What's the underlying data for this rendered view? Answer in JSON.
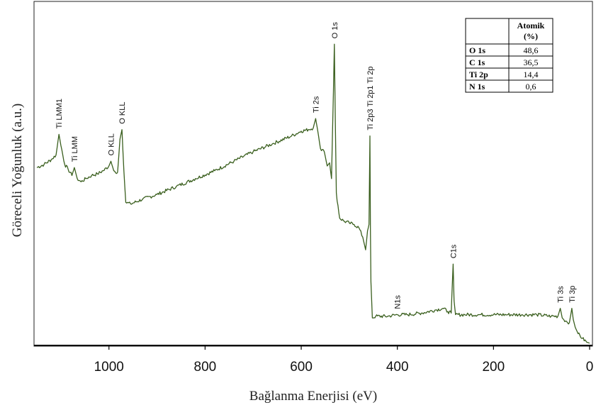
{
  "chart_data": {
    "type": "line",
    "xlabel": "Bağlanma Enerjisi (eV)",
    "ylabel": "Göreceli Yoğunluk (a.u.)",
    "xlim": [
      1150,
      0
    ],
    "x_reversed": true,
    "xticks": [
      {
        "value": 1000,
        "label": "1000"
      },
      {
        "value": 800,
        "label": "800"
      },
      {
        "value": 600,
        "label": "600"
      },
      {
        "value": 400,
        "label": "400"
      },
      {
        "value": 200,
        "label": "200"
      },
      {
        "value": 0,
        "label": "0"
      }
    ],
    "ylim": [
      0,
      100
    ],
    "yticks_shown": false,
    "line_color": "#3a5f1e",
    "series": [
      {
        "points": [
          [
            1150,
            56.0
          ],
          [
            1135,
            57.0
          ],
          [
            1120,
            58.5
          ],
          [
            1110,
            60.0
          ],
          [
            1104,
            66.5
          ],
          [
            1100,
            63.0
          ],
          [
            1092,
            57.0
          ],
          [
            1085,
            55.5
          ],
          [
            1077,
            53.5
          ],
          [
            1072,
            56.0
          ],
          [
            1066,
            52.5
          ],
          [
            1058,
            51.5
          ],
          [
            1048,
            52.5
          ],
          [
            1036,
            53.5
          ],
          [
            1024,
            54.0
          ],
          [
            1012,
            55.0
          ],
          [
            1000,
            56.5
          ],
          [
            996,
            58.0
          ],
          [
            990,
            55.0
          ],
          [
            982,
            54.5
          ],
          [
            977,
            65.0
          ],
          [
            973,
            68.0
          ],
          [
            969,
            55.0
          ],
          [
            965,
            45.0
          ],
          [
            955,
            44.5
          ],
          [
            930,
            46.0
          ],
          [
            900,
            47.5
          ],
          [
            860,
            50.0
          ],
          [
            820,
            52.5
          ],
          [
            780,
            55.0
          ],
          [
            740,
            58.0
          ],
          [
            700,
            61.0
          ],
          [
            660,
            63.5
          ],
          [
            620,
            66.0
          ],
          [
            600,
            67.5
          ],
          [
            585,
            68.0
          ],
          [
            575,
            68.5
          ],
          [
            570,
            71.5
          ],
          [
            566,
            68.0
          ],
          [
            560,
            62.0
          ],
          [
            552,
            61.0
          ],
          [
            546,
            56.5
          ],
          [
            541,
            57.5
          ],
          [
            537,
            52.5
          ],
          [
            533,
            80.0
          ],
          [
            531,
            95.0
          ],
          [
            529,
            70.0
          ],
          [
            527,
            48.0
          ],
          [
            520,
            40.0
          ],
          [
            510,
            39.0
          ],
          [
            500,
            38.5
          ],
          [
            490,
            38.0
          ],
          [
            480,
            37.0
          ],
          [
            472,
            34.0
          ],
          [
            466,
            30.0
          ],
          [
            462,
            36.0
          ],
          [
            459,
            38.0
          ],
          [
            457,
            66.0
          ],
          [
            456,
            36.0
          ],
          [
            455,
            20.0
          ],
          [
            452,
            8.5
          ],
          [
            445,
            9.0
          ],
          [
            420,
            9.0
          ],
          [
            400,
            9.5
          ],
          [
            380,
            9.5
          ],
          [
            350,
            10.0
          ],
          [
            320,
            11.0
          ],
          [
            305,
            11.5
          ],
          [
            295,
            10.5
          ],
          [
            288,
            10.0
          ],
          [
            284,
            25.5
          ],
          [
            282,
            14.0
          ],
          [
            279,
            9.5
          ],
          [
            260,
            9.5
          ],
          [
            230,
            9.5
          ],
          [
            200,
            9.5
          ],
          [
            170,
            9.5
          ],
          [
            140,
            9.5
          ],
          [
            110,
            9.5
          ],
          [
            80,
            9.0
          ],
          [
            66,
            9.0
          ],
          [
            61,
            11.5
          ],
          [
            57,
            8.5
          ],
          [
            50,
            7.5
          ],
          [
            42,
            7.0
          ],
          [
            37,
            11.5
          ],
          [
            34,
            8.0
          ],
          [
            30,
            5.5
          ],
          [
            24,
            3.5
          ],
          [
            15,
            2.0
          ],
          [
            6,
            0.8
          ],
          [
            0,
            0.5
          ]
        ]
      }
    ],
    "peak_labels": [
      {
        "text": "Ti LMM1",
        "x": 1104,
        "y": 66.5
      },
      {
        "text": "Ti LMM",
        "x": 1072,
        "y": 56.0
      },
      {
        "text": "O KLL",
        "x": 996,
        "y": 58.0
      },
      {
        "text": "O KLL",
        "x": 973,
        "y": 68.0
      },
      {
        "text": "Ti 2s",
        "x": 570,
        "y": 71.5
      },
      {
        "text": "O 1s",
        "x": 531,
        "y": 95.0
      },
      {
        "text": "Ti 2p3 Ti 2p1 Ti 2p",
        "x": 457,
        "y": 66.0
      },
      {
        "text": "N1s",
        "x": 400,
        "y": 9.5
      },
      {
        "text": "C1s",
        "x": 284,
        "y": 25.5
      },
      {
        "text": "Ti 3s",
        "x": 61,
        "y": 11.5
      },
      {
        "text": "Ti 3p",
        "x": 37,
        "y": 11.5
      }
    ],
    "table": {
      "header": [
        "",
        "Atomik (%)"
      ],
      "rows": [
        [
          "O 1s",
          "48,6"
        ],
        [
          "C 1s",
          "36,5"
        ],
        [
          "Ti 2p",
          "14,4"
        ],
        [
          "N 1s",
          "0,6"
        ]
      ],
      "placement": "top-right"
    }
  }
}
